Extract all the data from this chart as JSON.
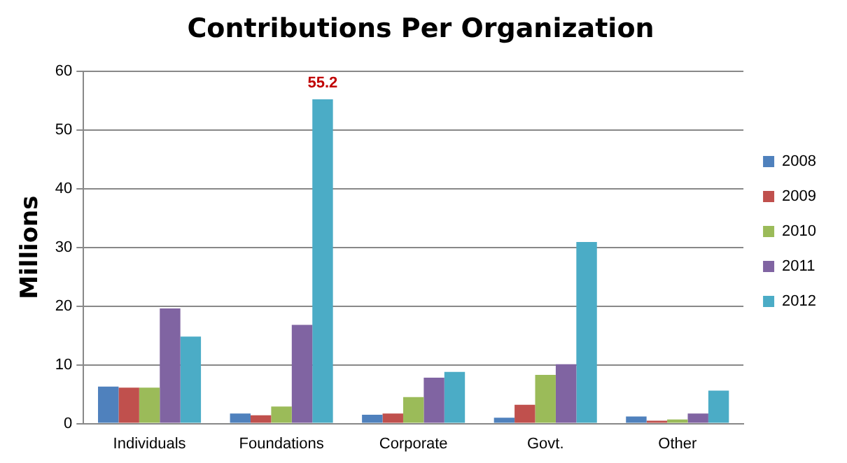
{
  "chart_data": {
    "type": "bar",
    "title": "Contributions Per Organization",
    "ylabel": "Millions",
    "categories": [
      "Individuals",
      "Foundations",
      "Corporate",
      "Govt.",
      "Other"
    ],
    "series": [
      {
        "name": "2008",
        "color": "#4f81bd",
        "values": [
          6.3,
          1.7,
          1.5,
          1.0,
          1.2
        ]
      },
      {
        "name": "2009",
        "color": "#c0504d",
        "values": [
          6.1,
          1.4,
          1.7,
          3.2,
          0.5
        ]
      },
      {
        "name": "2010",
        "color": "#9bbb59",
        "values": [
          6.1,
          2.9,
          4.5,
          8.3,
          0.7
        ]
      },
      {
        "name": "2011",
        "color": "#8064a2",
        "values": [
          19.6,
          16.8,
          7.8,
          10.1,
          1.7
        ]
      },
      {
        "name": "2012",
        "color": "#4bacc6",
        "values": [
          14.8,
          55.2,
          8.8,
          30.9,
          5.6
        ],
        "value_labels": [
          null,
          "55.2",
          null,
          null,
          null
        ]
      }
    ],
    "ylim": [
      0,
      60
    ],
    "yticks": [
      0,
      10,
      20,
      30,
      40,
      50,
      60
    ],
    "grid": "y",
    "legend": "right"
  }
}
